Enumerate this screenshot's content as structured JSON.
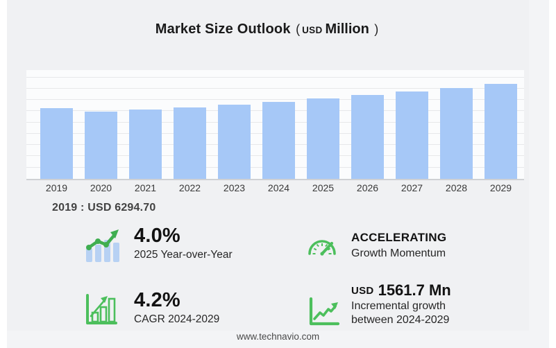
{
  "header": {
    "title": "Market Size Outlook",
    "unit": {
      "open": "(",
      "currency": "USD",
      "label": "Million",
      "close": ")"
    }
  },
  "chart_data": {
    "type": "bar",
    "title": "Market Size Outlook (USD Million)",
    "categories": [
      "2019",
      "2020",
      "2021",
      "2022",
      "2023",
      "2024",
      "2025",
      "2026",
      "2027",
      "2028",
      "2029"
    ],
    "values": [
      6294.7,
      5950,
      6130,
      6360,
      6600,
      6838,
      7111,
      7413,
      7728,
      8057,
      8399
    ],
    "ylim": [
      0,
      9650
    ],
    "grid_step": 1000,
    "grid": true,
    "legend_position": "none",
    "xlabel": "",
    "ylabel": "",
    "bar_color": "#a6c8f7",
    "annotation": "2019 : USD 6294.70"
  },
  "stats": {
    "yoy": {
      "value": "4.0%",
      "label": "2025 Year-over-Year",
      "icon": "trend-bars-icon"
    },
    "momentum": {
      "value": "ACCELERATING",
      "label": "Growth Momentum",
      "icon": "gauge-icon"
    },
    "cagr": {
      "value": "4.2%",
      "label": "CAGR 2024-2029",
      "icon": "bar-growth-icon"
    },
    "incremental": {
      "currency": "USD",
      "value": "1561.7 Mn",
      "label_line1": "Incremental growth",
      "label_line2": "between 2024-2029",
      "icon": "line-growth-icon"
    }
  },
  "footer": {
    "site": "www.technavio.com"
  },
  "colors": {
    "bar": "#a6c8f7",
    "icon_green": "#4cbf5c",
    "icon_green_dark": "#3fae50",
    "icon_blue": "#b7d1f3",
    "panel_background": "#f0f1f3",
    "chart_background": "#fbfcfd"
  }
}
